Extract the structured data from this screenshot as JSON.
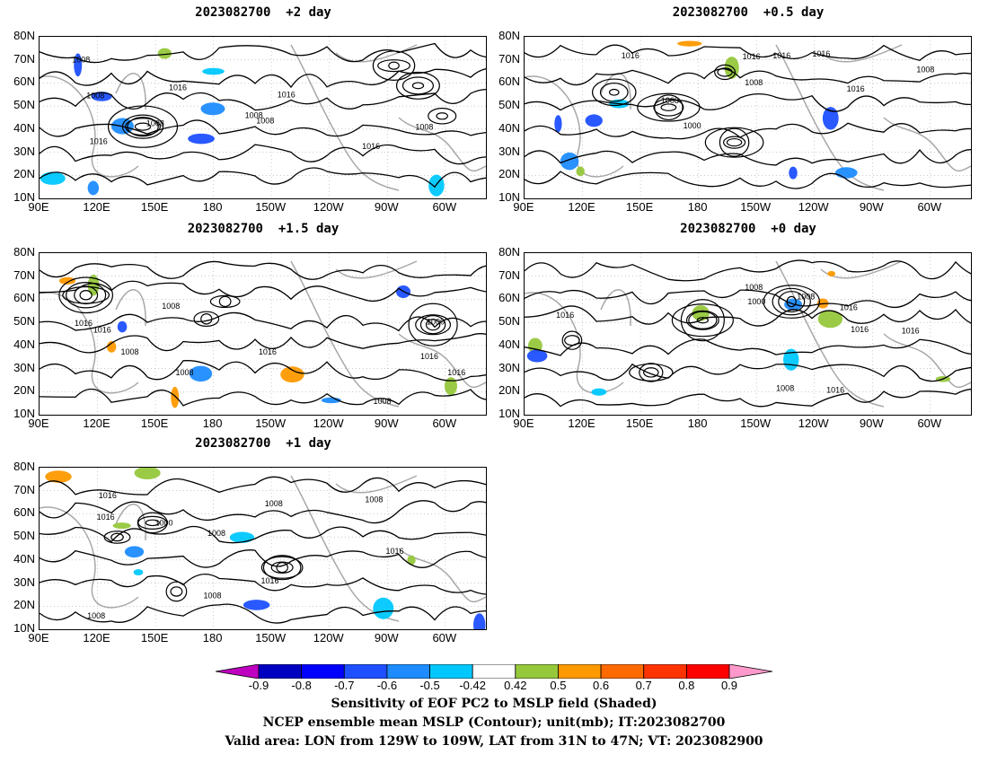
{
  "panels": [
    {
      "title": "2023082700  +2 day",
      "contours": [
        "1008",
        "1016",
        "1008",
        "1016",
        "1008",
        "1008",
        "1016",
        "1008",
        "1016",
        "1008"
      ]
    },
    {
      "title": "2023082700  +0.5 day",
      "contours": [
        "1008",
        "1016",
        "1008",
        "1016",
        "1016",
        "1016",
        "1000",
        "1016",
        "1008"
      ]
    },
    {
      "title": "2023082700  +1.5 day",
      "contours": [
        "1008",
        "1016",
        "1016",
        "1008",
        "1016",
        "1008",
        "1000",
        "1016",
        "1016",
        "1008"
      ]
    },
    {
      "title": "2023082700  +0 day",
      "contours": [
        "1008",
        "1016",
        "1016",
        "1008",
        "1016",
        "1000",
        "1008",
        "1016",
        "1016"
      ]
    },
    {
      "title": "2023082700  +1 day",
      "contours": [
        "1008",
        "1016",
        "1008",
        "1016",
        "1008",
        "1000",
        "1016",
        "1008",
        "1016",
        "1008"
      ]
    }
  ],
  "lat_labels": [
    "80N",
    "70N",
    "60N",
    "50N",
    "40N",
    "30N",
    "20N",
    "10N"
  ],
  "lon_labels": [
    "90E",
    "120E",
    "150E",
    "180",
    "150W",
    "120W",
    "90W",
    "60W"
  ],
  "colorbar": {
    "ticks": [
      "-0.9",
      "-0.8",
      "-0.7",
      "-0.6",
      "-0.5",
      "-0.42",
      "0.42",
      "0.5",
      "0.6",
      "0.7",
      "0.8",
      "0.9"
    ],
    "colors": [
      "#c000c0",
      "#0000c0",
      "#0000ff",
      "#1e50ff",
      "#1e8cff",
      "#00c8ff",
      "#ffffff",
      "#96c83c",
      "#ff9900",
      "#ff6a00",
      "#ff3300",
      "#ff0000",
      "#ff99cc"
    ]
  },
  "caption": {
    "line1": "Sensitivity of EOF PC2 to MSLP field (Shaded)",
    "line2": "NCEP ensemble mean MSLP (Contour); unit(mb); IT:2023082700",
    "line3": "Valid area: LON from 129W to 109W, LAT from 31N to 47N; VT: 2023082900"
  }
}
